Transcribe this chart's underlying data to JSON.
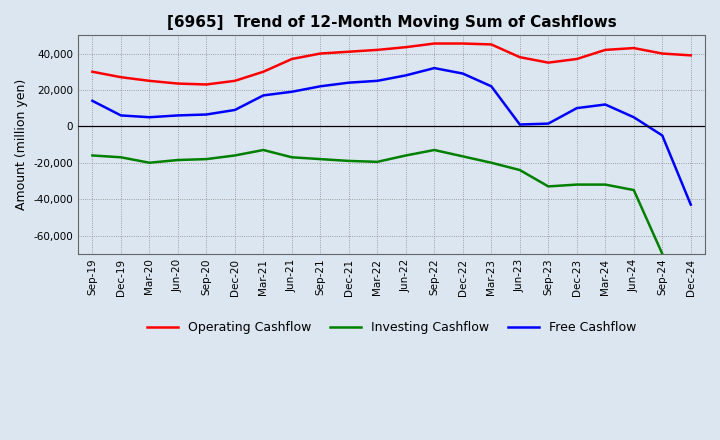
{
  "title": "[6965]  Trend of 12-Month Moving Sum of Cashflows",
  "ylabel": "Amount (million yen)",
  "x_labels": [
    "Sep-19",
    "Dec-19",
    "Mar-20",
    "Jun-20",
    "Sep-20",
    "Dec-20",
    "Mar-21",
    "Jun-21",
    "Sep-21",
    "Dec-21",
    "Mar-22",
    "Jun-22",
    "Sep-22",
    "Dec-22",
    "Mar-23",
    "Jun-23",
    "Sep-23",
    "Dec-23",
    "Mar-24",
    "Jun-24",
    "Sep-24",
    "Dec-24"
  ],
  "operating": [
    30000,
    27000,
    25000,
    23500,
    23000,
    25000,
    30000,
    37000,
    40000,
    41000,
    42000,
    43500,
    45500,
    45500,
    45000,
    38000,
    35000,
    37000,
    42000,
    43000,
    40000,
    39000
  ],
  "investing": [
    -16000,
    -17000,
    -20000,
    -18500,
    -18000,
    -16000,
    -13000,
    -17000,
    -18000,
    -19000,
    -19500,
    -16000,
    -13000,
    -16500,
    -20000,
    -24000,
    -33000,
    -32000,
    -32000,
    -35000,
    -70000,
    null
  ],
  "free": [
    14000,
    6000,
    5000,
    6000,
    6500,
    9000,
    17000,
    19000,
    22000,
    24000,
    25000,
    28000,
    32000,
    29000,
    22000,
    1000,
    1500,
    10000,
    12000,
    5000,
    -5000,
    -43000
  ],
  "operating_color": "#ff0000",
  "investing_color": "#008000",
  "free_color": "#0000ff",
  "background_color": "#dce6f0",
  "plot_bg_color": "#dce6f0",
  "grid_color": "#888888",
  "ylim": [
    -70000,
    50000
  ],
  "yticks": [
    -60000,
    -40000,
    -20000,
    0,
    20000,
    40000
  ],
  "line_width": 1.8,
  "title_fontsize": 11,
  "legend_fontsize": 9,
  "tick_fontsize": 7.5
}
